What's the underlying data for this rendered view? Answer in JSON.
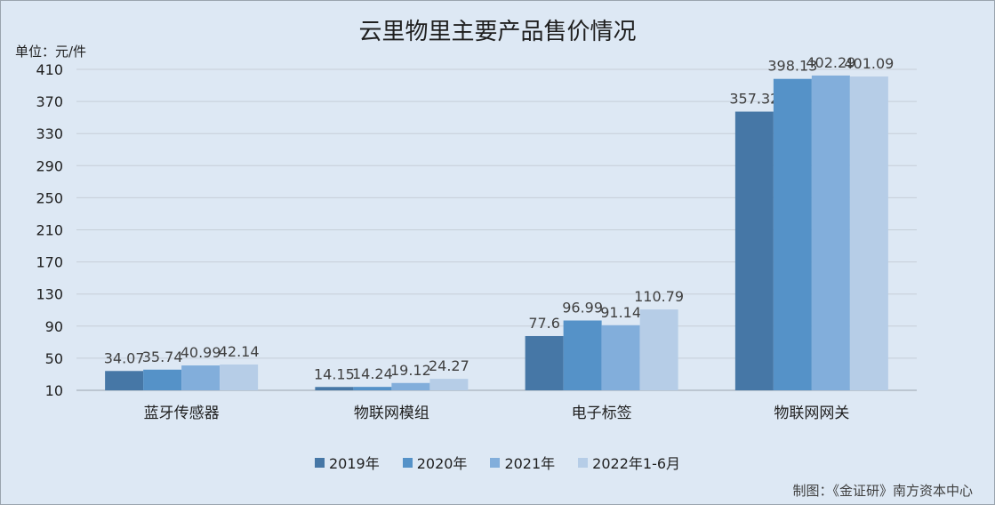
{
  "title": "云里物里主要产品售价情况",
  "unit_label": "单位：元/件",
  "credit": "制图：《金证研》南方资本中心",
  "chart_data": {
    "type": "bar",
    "title": "云里物里主要产品售价情况",
    "ylabel": "单位：元/件",
    "xlabel": "",
    "ylim": [
      10,
      410
    ],
    "yticks": [
      10,
      50,
      90,
      130,
      170,
      210,
      250,
      290,
      330,
      370,
      410
    ],
    "grid": true,
    "legend_position": "bottom",
    "categories": [
      "蓝牙传感器",
      "物联网模组",
      "电子标签",
      "物联网网关"
    ],
    "series": [
      {
        "name": "2019年",
        "color": "#4677a6",
        "values": [
          34.07,
          14.15,
          77.6,
          357.32
        ]
      },
      {
        "name": "2020年",
        "color": "#5592c8",
        "values": [
          35.74,
          14.24,
          96.99,
          398.13
        ]
      },
      {
        "name": "2021年",
        "color": "#82aedb",
        "values": [
          40.99,
          19.12,
          91.14,
          402.29
        ]
      },
      {
        "name": "2022年1-6月",
        "color": "#b6cde7",
        "values": [
          42.14,
          24.27,
          110.79,
          401.09
        ]
      }
    ]
  }
}
